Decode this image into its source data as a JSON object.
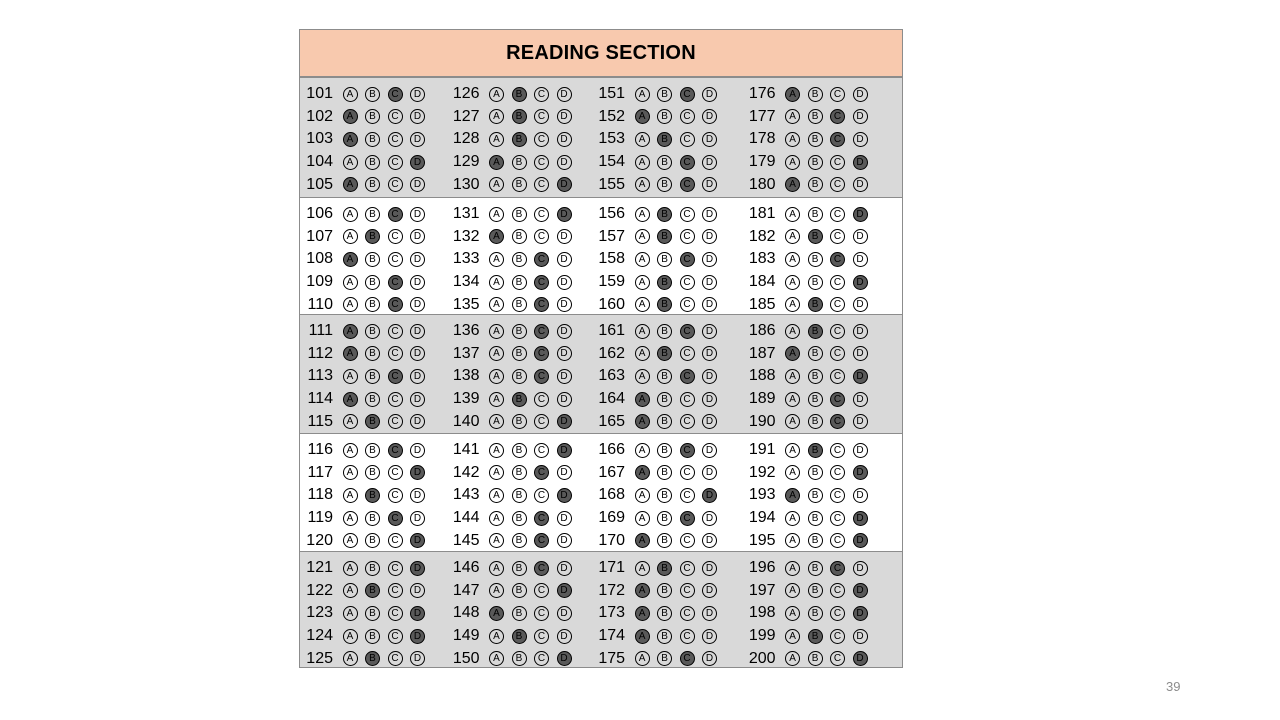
{
  "title": "READING SECTION",
  "page_number": "39",
  "choices": [
    "A",
    "B",
    "C",
    "D"
  ],
  "columns_per_block": 4,
  "block_size": 5,
  "answers": {
    "101": "C",
    "102": "A",
    "103": "A",
    "104": "D",
    "105": "A",
    "106": "C",
    "107": "B",
    "108": "A",
    "109": "C",
    "110": "C",
    "111": "A",
    "112": "A",
    "113": "C",
    "114": "A",
    "115": "B",
    "116": "C",
    "117": "D",
    "118": "B",
    "119": "C",
    "120": "D",
    "121": "D",
    "122": "B",
    "123": "D",
    "124": "D",
    "125": "B",
    "126": "B",
    "127": "B",
    "128": "B",
    "129": "A",
    "130": "D",
    "131": "D",
    "132": "A",
    "133": "C",
    "134": "C",
    "135": "C",
    "136": "C",
    "137": "C",
    "138": "C",
    "139": "B",
    "140": "D",
    "141": "D",
    "142": "C",
    "143": "D",
    "144": "C",
    "145": "C",
    "146": "C",
    "147": "D",
    "148": "A",
    "149": "B",
    "150": "D",
    "151": "C",
    "152": "A",
    "153": "B",
    "154": "C",
    "155": "C",
    "156": "B",
    "157": "B",
    "158": "C",
    "159": "B",
    "160": "B",
    "161": "C",
    "162": "B",
    "163": "C",
    "164": "A",
    "165": "A",
    "166": "C",
    "167": "A",
    "168": "D",
    "169": "C",
    "170": "A",
    "171": "B",
    "172": "A",
    "173": "A",
    "174": "A",
    "175": "C",
    "176": "A",
    "177": "C",
    "178": "C",
    "179": "D",
    "180": "A",
    "181": "D",
    "182": "B",
    "183": "C",
    "184": "D",
    "185": "B",
    "186": "B",
    "187": "A",
    "188": "D",
    "189": "C",
    "190": "C",
    "191": "B",
    "192": "D",
    "193": "A",
    "194": "D",
    "195": "D",
    "196": "C",
    "197": "D",
    "198": "D",
    "199": "B",
    "200": "D"
  },
  "colors": {
    "header_bg": "#f8c9ae",
    "shaded_band": "#d9d9d9",
    "filled_bubble": "#595959"
  }
}
